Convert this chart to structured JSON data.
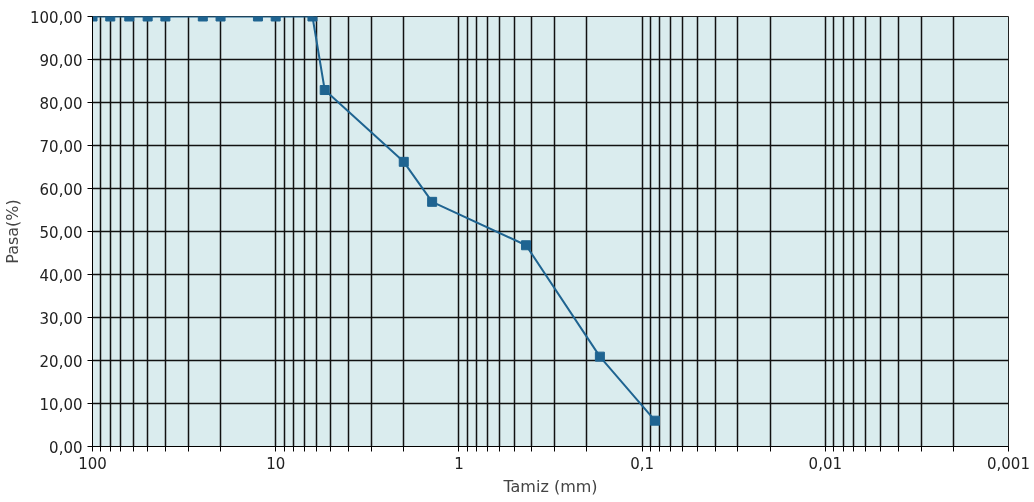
{
  "chart_data": {
    "type": "line",
    "xlabel": "Tamiz (mm)",
    "ylabel": "Pasa(%)",
    "x": [
      100,
      80,
      63,
      50,
      40,
      25,
      20,
      12.5,
      10,
      6.3,
      5.4,
      2,
      1.4,
      0.43,
      0.17,
      0.085
    ],
    "series": [
      {
        "color": "#1f6491",
        "values": [
          100,
          100,
          100,
          100,
          100,
          100,
          100,
          100,
          100,
          100,
          82.9,
          66.2,
          56.9,
          46.8,
          20.9,
          6.0
        ]
      }
    ],
    "log": "x",
    "marker": "square",
    "line_style": "solid",
    "grid": true,
    "xlim": [
      100,
      0.001
    ],
    "ylim": [
      0,
      100
    ],
    "xticks": [
      {
        "value": 100,
        "label": "100"
      },
      {
        "value": 90,
        "label": null
      },
      {
        "value": 80,
        "label": null
      },
      {
        "value": 70,
        "label": null
      },
      {
        "value": 60,
        "label": null
      },
      {
        "value": 50,
        "label": null
      },
      {
        "value": 40,
        "label": null
      },
      {
        "value": 30,
        "label": null
      },
      {
        "value": 20,
        "label": null
      },
      {
        "value": 10,
        "label": "10"
      },
      {
        "value": 9,
        "label": null
      },
      {
        "value": 8,
        "label": null
      },
      {
        "value": 7,
        "label": null
      },
      {
        "value": 6,
        "label": null
      },
      {
        "value": 5,
        "label": null
      },
      {
        "value": 4,
        "label": null
      },
      {
        "value": 3,
        "label": null
      },
      {
        "value": 2,
        "label": null
      },
      {
        "value": 1,
        "label": "1"
      },
      {
        "value": 0.9,
        "label": null
      },
      {
        "value": 0.8,
        "label": null
      },
      {
        "value": 0.7,
        "label": null
      },
      {
        "value": 0.6,
        "label": null
      },
      {
        "value": 0.5,
        "label": null
      },
      {
        "value": 0.4,
        "label": null
      },
      {
        "value": 0.3,
        "label": null
      },
      {
        "value": 0.2,
        "label": null
      },
      {
        "value": 0.1,
        "label": "0,1"
      },
      {
        "value": 0.09,
        "label": null
      },
      {
        "value": 0.08,
        "label": null
      },
      {
        "value": 0.07,
        "label": null
      },
      {
        "value": 0.06,
        "label": null
      },
      {
        "value": 0.05,
        "label": null
      },
      {
        "value": 0.04,
        "label": null
      },
      {
        "value": 0.03,
        "label": null
      },
      {
        "value": 0.02,
        "label": null
      },
      {
        "value": 0.01,
        "label": "0,01"
      },
      {
        "value": 0.009,
        "label": null
      },
      {
        "value": 0.008,
        "label": null
      },
      {
        "value": 0.007,
        "label": null
      },
      {
        "value": 0.006,
        "label": null
      },
      {
        "value": 0.005,
        "label": null
      },
      {
        "value": 0.004,
        "label": null
      },
      {
        "value": 0.003,
        "label": null
      },
      {
        "value": 0.002,
        "label": null
      },
      {
        "value": 0.001,
        "label": "0,001"
      }
    ],
    "yticks": [
      {
        "value": 0,
        "label": "0,00"
      },
      {
        "value": 10,
        "label": "10,00"
      },
      {
        "value": 20,
        "label": "20,00"
      },
      {
        "value": 30,
        "label": "30,00"
      },
      {
        "value": 40,
        "label": "40,00"
      },
      {
        "value": 50,
        "label": "50,00"
      },
      {
        "value": 60,
        "label": "60,00"
      },
      {
        "value": 70,
        "label": "70,00"
      },
      {
        "value": 80,
        "label": "80,00"
      },
      {
        "value": 90,
        "label": "90,00"
      },
      {
        "value": 100,
        "label": "100,00"
      }
    ]
  }
}
